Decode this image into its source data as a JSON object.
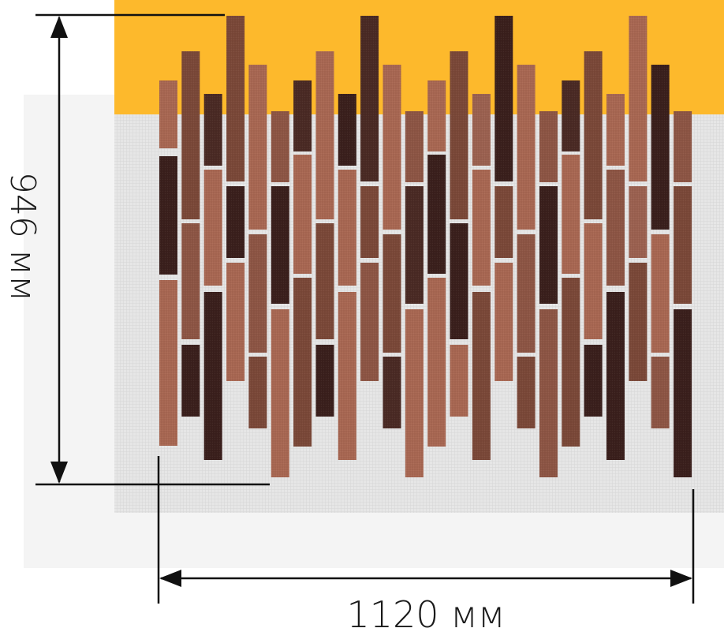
{
  "dimensions": {
    "height_label": "946 мм",
    "width_label": "1120 мм"
  },
  "colors": {
    "yellow_background": "#fdb92c",
    "mesh_backing": "#e2e2e2",
    "dimension_lines": "#111111",
    "brick_palette": [
      "#a86752",
      "#7a4838",
      "#4a2a24",
      "#3a1f1c",
      "#8d5544",
      "#9b6150"
    ]
  },
  "icons": {
    "arrow_heads": "arrowhead-icon"
  }
}
